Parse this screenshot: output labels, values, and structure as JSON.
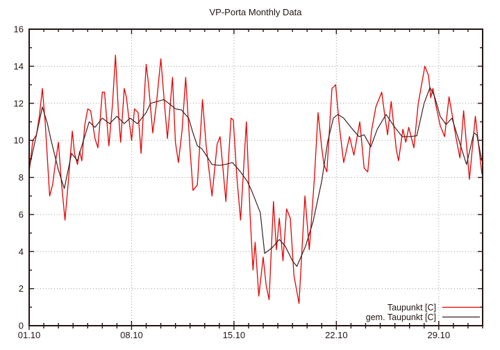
{
  "window": {
    "title": "VP-Porta Monthly Data"
  },
  "colors": {
    "background": "#ffffff",
    "frame": "#241414",
    "grid": "#9a9a9a",
    "text": "#241414",
    "series_red": "#e60000",
    "series_dark": "#3c1e1e"
  },
  "legend": {
    "position": "bottom-right",
    "entries": [
      {
        "label": "Taupunkt [C]",
        "color": "#e60000"
      },
      {
        "label": "gem. Taupunkt [C]",
        "color": "#3c1e1e"
      }
    ]
  },
  "chart_data": {
    "type": "line",
    "title": "VP-Porta Monthly Data",
    "xlabel": "",
    "ylabel": "",
    "x_unit": "date (day of October; 32 = 01.11)",
    "y_unit": "dew point temperature [C]",
    "xlim": [
      1,
      32
    ],
    "ylim": [
      0,
      16
    ],
    "grid": "dotted lines at major ticks",
    "x_ticks": [
      {
        "value": 1,
        "label": "01.10"
      },
      {
        "value": 8,
        "label": "08.10"
      },
      {
        "value": 15,
        "label": "15.10"
      },
      {
        "value": 22,
        "label": "22.10"
      },
      {
        "value": 29,
        "label": "29.10"
      }
    ],
    "x_minor_tick_interval": 1,
    "y_ticks": [
      0,
      2,
      4,
      6,
      8,
      10,
      12,
      14,
      16
    ],
    "y_minor_ticks": [
      1,
      3,
      5,
      7,
      9,
      11,
      13,
      15
    ],
    "legend_position": "bottom-right",
    "series": [
      {
        "name": "Taupunkt [C]",
        "color": "#e60000",
        "width": 1.3,
        "points": [
          [
            1.0,
            8.3
          ],
          [
            1.25,
            10.0
          ],
          [
            1.5,
            10.3
          ],
          [
            1.7,
            11.3
          ],
          [
            1.9,
            12.8
          ],
          [
            2.1,
            10.9
          ],
          [
            2.4,
            7.0
          ],
          [
            2.6,
            7.6
          ],
          [
            2.8,
            8.8
          ],
          [
            3.0,
            9.9
          ],
          [
            3.2,
            7.8
          ],
          [
            3.45,
            5.7
          ],
          [
            3.7,
            8.0
          ],
          [
            3.95,
            10.5
          ],
          [
            4.1,
            9.3
          ],
          [
            4.3,
            8.7
          ],
          [
            4.45,
            9.4
          ],
          [
            4.6,
            8.9
          ],
          [
            4.8,
            10.8
          ],
          [
            5.0,
            11.7
          ],
          [
            5.2,
            11.6
          ],
          [
            5.5,
            10.1
          ],
          [
            5.7,
            9.6
          ],
          [
            6.0,
            12.6
          ],
          [
            6.15,
            12.6
          ],
          [
            6.45,
            9.7
          ],
          [
            6.7,
            12.0
          ],
          [
            6.9,
            14.6
          ],
          [
            7.1,
            11.5
          ],
          [
            7.25,
            9.9
          ],
          [
            7.5,
            12.8
          ],
          [
            7.65,
            12.3
          ],
          [
            7.8,
            11.3
          ],
          [
            8.0,
            10.0
          ],
          [
            8.2,
            11.7
          ],
          [
            8.45,
            11.5
          ],
          [
            8.65,
            9.3
          ],
          [
            9.0,
            14.1
          ],
          [
            9.15,
            13.1
          ],
          [
            9.45,
            10.4
          ],
          [
            9.7,
            12.0
          ],
          [
            10.0,
            14.4
          ],
          [
            10.25,
            12.0
          ],
          [
            10.45,
            10.1
          ],
          [
            10.8,
            13.4
          ],
          [
            11.0,
            9.9
          ],
          [
            11.2,
            8.8
          ],
          [
            11.45,
            10.5
          ],
          [
            11.7,
            13.4
          ],
          [
            12.0,
            9.5
          ],
          [
            12.2,
            7.3
          ],
          [
            12.5,
            7.6
          ],
          [
            12.85,
            12.2
          ],
          [
            13.1,
            9.7
          ],
          [
            13.5,
            7.0
          ],
          [
            13.85,
            9.8
          ],
          [
            14.05,
            10.2
          ],
          [
            14.3,
            8.0
          ],
          [
            14.45,
            6.7
          ],
          [
            14.8,
            11.2
          ],
          [
            14.95,
            11.1
          ],
          [
            15.2,
            8.0
          ],
          [
            15.45,
            5.7
          ],
          [
            15.85,
            11.0
          ],
          [
            16.1,
            6.0
          ],
          [
            16.3,
            3.0
          ],
          [
            16.45,
            4.5
          ],
          [
            16.7,
            1.6
          ],
          [
            17.0,
            3.7
          ],
          [
            17.2,
            2.2
          ],
          [
            17.4,
            1.4
          ],
          [
            17.7,
            6.7
          ],
          [
            17.9,
            4.1
          ],
          [
            18.1,
            5.8
          ],
          [
            18.35,
            3.5
          ],
          [
            18.6,
            6.3
          ],
          [
            18.85,
            5.8
          ],
          [
            19.1,
            2.7
          ],
          [
            19.45,
            1.2
          ],
          [
            19.85,
            7.0
          ],
          [
            20.15,
            4.1
          ],
          [
            20.5,
            8.0
          ],
          [
            20.75,
            11.5
          ],
          [
            21.0,
            9.6
          ],
          [
            21.15,
            8.7
          ],
          [
            21.35,
            8.3
          ],
          [
            21.7,
            12.8
          ],
          [
            21.95,
            13.0
          ],
          [
            22.2,
            10.8
          ],
          [
            22.5,
            8.8
          ],
          [
            22.9,
            10.2
          ],
          [
            23.2,
            9.2
          ],
          [
            23.6,
            11.0
          ],
          [
            23.9,
            8.5
          ],
          [
            24.15,
            8.3
          ],
          [
            24.4,
            10.5
          ],
          [
            24.7,
            11.8
          ],
          [
            25.1,
            12.6
          ],
          [
            25.3,
            11.4
          ],
          [
            25.5,
            10.3
          ],
          [
            25.75,
            12.1
          ],
          [
            26.1,
            9.5
          ],
          [
            26.25,
            8.9
          ],
          [
            26.55,
            10.6
          ],
          [
            26.75,
            9.9
          ],
          [
            26.95,
            10.7
          ],
          [
            27.3,
            9.6
          ],
          [
            27.6,
            12.0
          ],
          [
            28.05,
            14.0
          ],
          [
            28.3,
            13.5
          ],
          [
            28.45,
            12.3
          ],
          [
            28.6,
            12.8
          ],
          [
            28.8,
            11.9
          ],
          [
            29.1,
            10.8
          ],
          [
            29.4,
            10.2
          ],
          [
            29.7,
            12.35
          ],
          [
            30.0,
            11.0
          ],
          [
            30.2,
            10.05
          ],
          [
            30.45,
            9.05
          ],
          [
            30.7,
            11.6
          ],
          [
            31.1,
            7.9
          ],
          [
            31.5,
            11.3
          ],
          [
            31.95,
            8.2
          ]
        ]
      },
      {
        "name": "gem. Taupunkt [C]",
        "color": "#3c1e1e",
        "width": 1.2,
        "points": [
          [
            1.0,
            8.5
          ],
          [
            1.5,
            10.3
          ],
          [
            1.9,
            11.8
          ],
          [
            2.25,
            10.9
          ],
          [
            2.5,
            10.0
          ],
          [
            3.0,
            8.4
          ],
          [
            3.4,
            7.4
          ],
          [
            3.9,
            9.3
          ],
          [
            4.3,
            8.9
          ],
          [
            4.6,
            9.7
          ],
          [
            5.1,
            11.0
          ],
          [
            5.5,
            10.7
          ],
          [
            6.0,
            11.2
          ],
          [
            6.5,
            10.9
          ],
          [
            7.0,
            11.3
          ],
          [
            7.5,
            10.9
          ],
          [
            7.9,
            11.2
          ],
          [
            8.4,
            10.9
          ],
          [
            9.0,
            11.5
          ],
          [
            9.3,
            12.0
          ],
          [
            10.2,
            12.2
          ],
          [
            10.7,
            11.9
          ],
          [
            11.0,
            11.7
          ],
          [
            11.4,
            11.65
          ],
          [
            11.9,
            11.2
          ],
          [
            12.2,
            10.4
          ],
          [
            12.5,
            9.7
          ],
          [
            12.8,
            9.55
          ],
          [
            13.1,
            9.2
          ],
          [
            13.5,
            8.7
          ],
          [
            14.0,
            8.65
          ],
          [
            14.4,
            8.7
          ],
          [
            14.9,
            8.8
          ],
          [
            15.4,
            8.35
          ],
          [
            15.9,
            7.8
          ],
          [
            16.2,
            7.3
          ],
          [
            16.5,
            6.7
          ],
          [
            16.8,
            6.1
          ],
          [
            17.1,
            3.9
          ],
          [
            17.6,
            4.2
          ],
          [
            18.1,
            4.65
          ],
          [
            18.5,
            4.3
          ],
          [
            19.0,
            3.5
          ],
          [
            19.3,
            3.2
          ],
          [
            19.9,
            4.3
          ],
          [
            20.4,
            5.6
          ],
          [
            20.7,
            6.7
          ],
          [
            21.0,
            7.8
          ],
          [
            21.4,
            9.9
          ],
          [
            21.8,
            11.2
          ],
          [
            22.1,
            11.4
          ],
          [
            22.5,
            11.2
          ],
          [
            23.0,
            10.7
          ],
          [
            23.55,
            10.2
          ],
          [
            23.9,
            10.3
          ],
          [
            24.35,
            9.65
          ],
          [
            24.8,
            10.6
          ],
          [
            25.4,
            11.4
          ],
          [
            26.0,
            10.7
          ],
          [
            26.5,
            10.2
          ],
          [
            27.0,
            10.2
          ],
          [
            27.5,
            10.25
          ],
          [
            28.0,
            12.0
          ],
          [
            28.4,
            12.85
          ],
          [
            28.7,
            12.4
          ],
          [
            29.1,
            11.3
          ],
          [
            29.5,
            10.85
          ],
          [
            29.9,
            11.2
          ],
          [
            30.3,
            10.2
          ],
          [
            30.9,
            8.7
          ],
          [
            31.4,
            10.4
          ],
          [
            31.6,
            10.3
          ],
          [
            31.95,
            8.9
          ]
        ]
      }
    ]
  }
}
